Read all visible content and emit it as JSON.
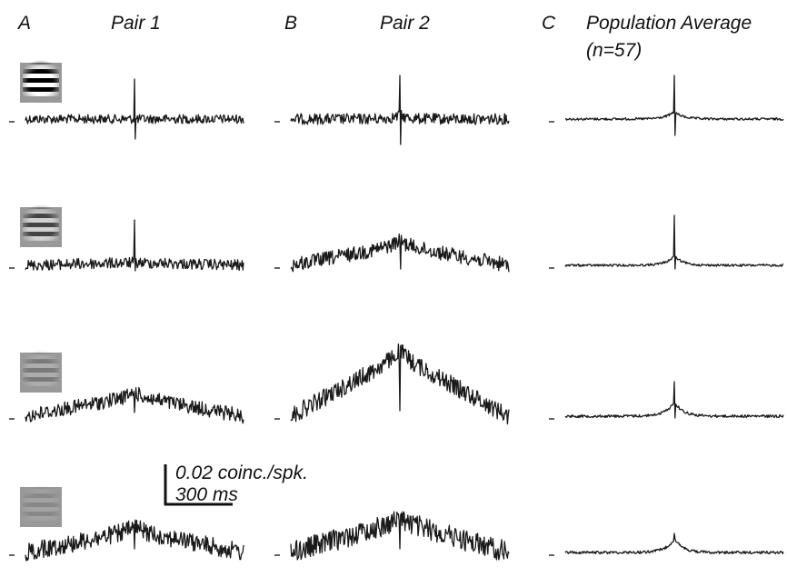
{
  "panels": [
    {
      "letter": "A",
      "title": "Pair 1"
    },
    {
      "letter": "B",
      "title": "Pair 2"
    },
    {
      "letter": "C",
      "title": "Population Average",
      "subtitle": "(n=57)"
    }
  ],
  "scale_bar": {
    "vertical": "0.02 coinc./spk.",
    "horizontal": "300 ms"
  }
}
